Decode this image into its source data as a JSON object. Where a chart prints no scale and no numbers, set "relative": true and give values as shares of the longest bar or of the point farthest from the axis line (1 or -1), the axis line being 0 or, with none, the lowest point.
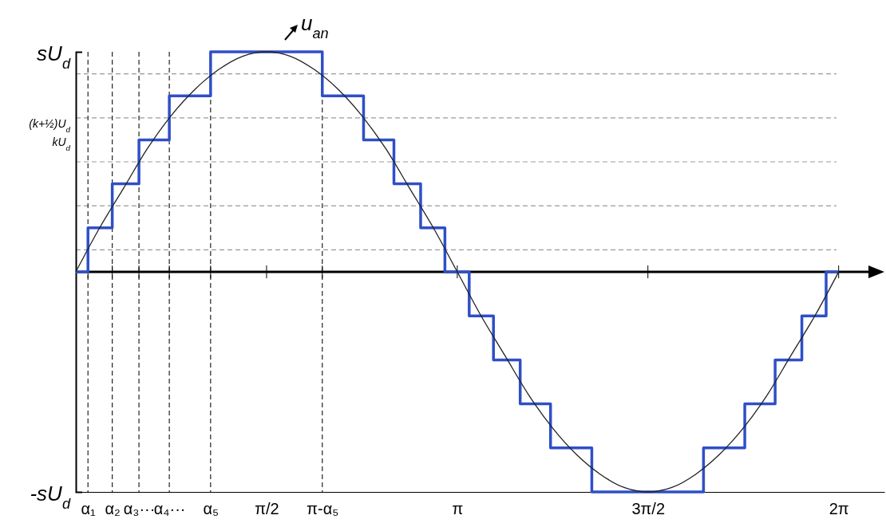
{
  "chart_data": {
    "type": "step",
    "relative": true,
    "xlim": [
      0,
      6.66
    ],
    "xticks": [
      {
        "value": 0.1,
        "label": "α₁"
      },
      {
        "value": 0.3,
        "label": "α₂"
      },
      {
        "value": 0.52,
        "label": "α₃···"
      },
      {
        "value": 0.77,
        "label": "α₄···"
      },
      {
        "value": 1.11,
        "label": "α₅"
      },
      {
        "value": 1.571,
        "label": "π/2"
      },
      {
        "value": 2.03,
        "label": "π-α₅"
      },
      {
        "value": 3.142,
        "label": "π"
      },
      {
        "value": 4.712,
        "label": "3π/2"
      },
      {
        "value": 6.283,
        "label": "2π"
      }
    ],
    "series": [
      {
        "color": "#2f4fc8",
        "x": [
          0,
          0.1,
          0.3,
          0.52,
          0.77,
          1.11,
          2.03,
          2.37,
          2.62,
          2.84,
          3.04,
          3.24,
          3.44,
          3.66,
          3.91,
          4.25,
          5.17,
          5.51,
          5.76,
          5.98,
          6.18,
          6.283
        ],
        "values": [
          0,
          0.2,
          0.4,
          0.6,
          0.8,
          1,
          0.8,
          0.6,
          0.4,
          0.2,
          0,
          -0.2,
          -0.4,
          -0.6,
          -0.8,
          -1,
          -0.8,
          -0.6,
          -0.4,
          -0.2,
          0,
          0
        ]
      },
      {
        "type": "line",
        "color": "#222222",
        "x": [
          0,
          0.196,
          0.393,
          0.589,
          0.785,
          0.982,
          1.178,
          1.374,
          1.571,
          1.767,
          1.963,
          2.16,
          2.356,
          2.553,
          2.749,
          2.945,
          3.142,
          3.338,
          3.534,
          3.731,
          3.927,
          4.123,
          4.32,
          4.516,
          4.712,
          4.909,
          5.105,
          5.301,
          5.498,
          5.694,
          5.89,
          6.087,
          6.283
        ],
        "values": [
          0,
          0.2,
          0.38,
          0.56,
          0.71,
          0.83,
          0.92,
          0.98,
          1,
          0.98,
          0.92,
          0.83,
          0.71,
          0.56,
          0.38,
          0.2,
          0,
          -0.2,
          -0.38,
          -0.56,
          -0.71,
          -0.83,
          -0.92,
          -0.98,
          -1,
          -0.98,
          -0.92,
          -0.83,
          -0.71,
          -0.56,
          -0.38,
          -0.2,
          0
        ]
      }
    ],
    "ref_lines": [
      {
        "axis": "y",
        "value": 0.9,
        "color": "#999999",
        "line_style": "dashed"
      },
      {
        "axis": "y",
        "value": 0.7,
        "color": "#999999",
        "line_style": "dashed"
      },
      {
        "axis": "y",
        "value": 0.5,
        "color": "#999999",
        "line_style": "dashed"
      },
      {
        "axis": "y",
        "value": 0.3,
        "color": "#999999",
        "line_style": "dashed"
      },
      {
        "axis": "y",
        "value": 0.1,
        "color": "#999999",
        "line_style": "dashed"
      },
      {
        "axis": "x",
        "value": 0.1,
        "color": "#222222",
        "line_style": "dashed"
      },
      {
        "axis": "x",
        "value": 0.3,
        "color": "#222222",
        "line_style": "dashed"
      },
      {
        "axis": "x",
        "value": 0.52,
        "color": "#222222",
        "line_style": "dashed"
      },
      {
        "axis": "x",
        "value": 0.77,
        "color": "#222222",
        "line_style": "dashed"
      },
      {
        "axis": "x",
        "value": 1.11,
        "color": "#222222",
        "line_style": "dashed"
      },
      {
        "axis": "x",
        "value": 2.03,
        "color": "#222222",
        "line_style": "dashed"
      }
    ],
    "annotations": [
      "u$_{an}$",
      "sU$_{d}$",
      "(k+½)U$_{d}$",
      "kU$_{d}$",
      "-sU$_{d}$"
    ]
  }
}
